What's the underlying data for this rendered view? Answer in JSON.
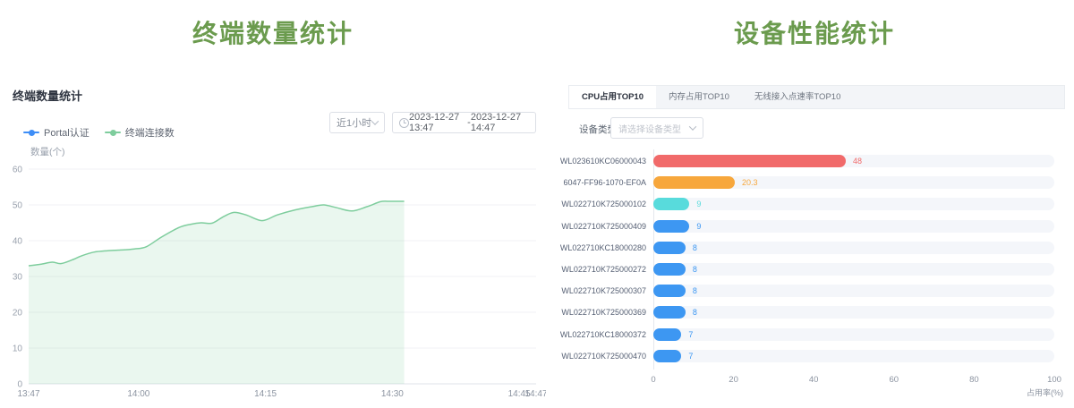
{
  "page": {
    "left_big_title": "终端数量统计",
    "right_big_title": "设备性能统计",
    "title_color": "#6b9b4e"
  },
  "terminal_panel": {
    "subtitle": "终端数量统计",
    "range_select_value": "近1小时",
    "date_range": {
      "start": "2023-12-27 13:47",
      "separator": "-",
      "end": "2023-12-27 14:47"
    },
    "legend": [
      {
        "label": "Portal认证",
        "color": "#3e8ef7"
      },
      {
        "label": "终端连接数",
        "color": "#7ecd9d"
      }
    ]
  },
  "performance_panel": {
    "tabs": [
      {
        "label": "CPU占用TOP10",
        "active": true
      },
      {
        "label": "内存占用TOP10",
        "active": false
      },
      {
        "label": "无线接入点速率TOP10",
        "active": false
      }
    ],
    "device_type_label": "设备类型",
    "device_type_placeholder": "请选择设备类型"
  },
  "icons": {
    "clock": "clock-face",
    "chevron_down": "chevron-down"
  },
  "chart_data": [
    {
      "type": "area",
      "title": "终端数量统计",
      "ylabel": "数量(个)",
      "ylim": [
        0,
        60
      ],
      "y_ticks": [
        0,
        10,
        20,
        30,
        40,
        50,
        60
      ],
      "x_range_minutes": [
        0,
        60
      ],
      "x_ticks": [
        {
          "label": "13:47",
          "min": 0
        },
        {
          "label": "14:00",
          "min": 13
        },
        {
          "label": "14:15",
          "min": 28
        },
        {
          "label": "14:30",
          "min": 43
        },
        {
          "label": "14:45",
          "min": 58
        },
        {
          "label": "14:47",
          "min": 60
        }
      ],
      "grid": true,
      "legend_position": "top-left",
      "series": [
        {
          "name": "Portal认证",
          "color": "#3e8ef7",
          "points": []
        },
        {
          "name": "终端连接数",
          "color": "#7ecd9d",
          "area_fill": "rgba(126,205,157,0.16)",
          "points": [
            [
              0,
              33
            ],
            [
              1.4,
              33.4
            ],
            [
              2.8,
              34
            ],
            [
              3.8,
              33.6
            ],
            [
              5.1,
              34.6
            ],
            [
              6.3,
              35.8
            ],
            [
              7.7,
              36.8
            ],
            [
              9.3,
              37.2
            ],
            [
              10.9,
              37.4
            ],
            [
              12.5,
              37.7
            ],
            [
              13.9,
              38.3
            ],
            [
              15.7,
              41
            ],
            [
              17.8,
              43.7
            ],
            [
              19.2,
              44.6
            ],
            [
              20.4,
              45
            ],
            [
              21.7,
              44.9
            ],
            [
              23.1,
              46.8
            ],
            [
              24.3,
              47.9
            ],
            [
              25.7,
              47.2
            ],
            [
              27.6,
              45.6
            ],
            [
              29.4,
              47.2
            ],
            [
              31.5,
              48.6
            ],
            [
              33.7,
              49.6
            ],
            [
              34.9,
              50
            ],
            [
              36.3,
              49.3
            ],
            [
              38.2,
              48.3
            ],
            [
              40,
              49.5
            ],
            [
              41.6,
              50.9
            ],
            [
              42.6,
              51
            ],
            [
              44.4,
              51
            ]
          ]
        }
      ]
    },
    {
      "type": "bar",
      "orientation": "horizontal",
      "title": "CPU占用TOP10",
      "categories": [
        "WL023610KC06000043",
        "6047-FF96-1070-EF0A",
        "WL022710K725000102",
        "WL022710K725000409",
        "WL022710KC18000280",
        "WL022710K725000272",
        "WL022710K725000307",
        "WL022710K725000369",
        "WL022710KC18000372",
        "WL022710K725000470"
      ],
      "values": [
        48,
        20.3,
        9,
        9,
        8,
        8,
        8,
        8,
        7,
        7
      ],
      "bar_colors": [
        "#f16a6a",
        "#f7a73c",
        "#58dbdc",
        "#3d97f2",
        "#3d97f2",
        "#3d97f2",
        "#3d97f2",
        "#3d97f2",
        "#3d97f2",
        "#3d97f2"
      ],
      "track_color": "#f4f6fa",
      "xlabel": "占用率(%)",
      "xlim": [
        0,
        100
      ],
      "x_ticks": [
        0,
        20,
        40,
        60,
        80,
        100
      ],
      "legend_position": "none",
      "grid": false
    }
  ]
}
